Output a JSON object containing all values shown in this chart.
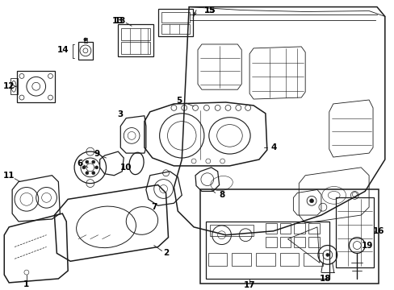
{
  "figsize": [
    4.89,
    3.6
  ],
  "dpi": 100,
  "bg": "#ffffff",
  "lc": "#1a1a1a"
}
